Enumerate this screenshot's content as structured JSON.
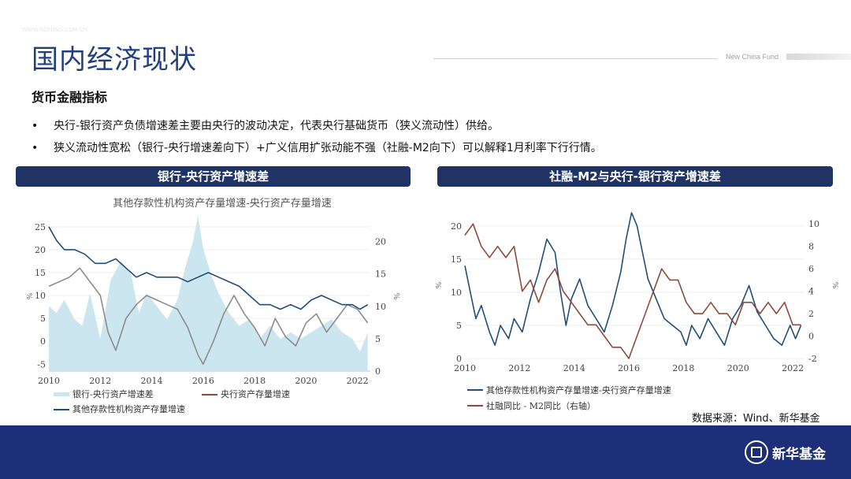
{
  "page": {
    "title": "国内经济现状",
    "brand_top": "New China Fund",
    "section": "货币金融指标",
    "bullets": [
      "央行-银行资产负债增速差主要由央行的波动决定，代表央行基础货币（狭义流动性）供给。",
      "狭义流动性宽松（银行-央行增速差向下）+广义信用扩张动能不强（社融-M2向下）可以解释1月利率下行行情。"
    ],
    "bullet_mark": "•",
    "source": "数据来源：Wind、新华基金",
    "footer": {
      "brand": "新华基金 New China Fund",
      "url": "WWW.NCFUND.COM.CN",
      "logo_text": "新华基金"
    },
    "colors": {
      "navy": "#1f3464",
      "footer": "#1c2f78",
      "blue": "#1f4e79",
      "brown": "#8b4a3c",
      "light": "#cce6ef",
      "gray": "#8c8c8c"
    }
  },
  "chart_data": [
    {
      "type": "area",
      "header": "银行-央行资产增速差",
      "title": "其他存款性机构资产存量增速-央行资产存量增速",
      "ylabel_left": "%",
      "ylabel_right": "%",
      "xlim": [
        2010,
        2022.5
      ],
      "ylim_left": [
        -6.5,
        26
      ],
      "ylim_right": [
        0,
        23
      ],
      "xticks": [
        "2010",
        "2012",
        "2014",
        "2016",
        "2018",
        "2020",
        "2022"
      ],
      "yticks_left": [
        "-5",
        "0",
        "5",
        "10",
        "15",
        "20",
        "25"
      ],
      "yticks_right": [
        "0",
        "5",
        "10",
        "15",
        "20"
      ],
      "series": [
        {
          "name": "银行-央行资产增速差",
          "style": "area",
          "axis": "right",
          "x": [
            2010,
            2010.3,
            2010.6,
            2011,
            2011.3,
            2011.6,
            2012,
            2012.4,
            2012.8,
            2013.2,
            2013.5,
            2013.8,
            2014.2,
            2014.6,
            2015,
            2015.3,
            2015.6,
            2015.8,
            2016,
            2016.3,
            2016.6,
            2017,
            2017.4,
            2017.8,
            2018.2,
            2018.6,
            2019,
            2019.4,
            2019.8,
            2020.2,
            2020.6,
            2021,
            2021.4,
            2021.8,
            2022.1,
            2022.4
          ],
          "y": [
            10,
            9,
            11,
            8,
            7,
            12,
            5,
            14,
            17,
            15,
            9,
            12,
            10,
            8,
            11,
            16,
            20,
            24,
            19,
            15,
            12,
            9,
            7,
            8,
            5,
            7,
            5,
            6,
            5,
            6,
            7,
            8,
            6,
            5,
            3,
            6
          ]
        },
        {
          "name": "央行资产存量增速",
          "style": "line",
          "axis": "left",
          "x": [
            2010,
            2010.4,
            2010.8,
            2011.2,
            2011.6,
            2012,
            2012.3,
            2012.6,
            2013,
            2013.4,
            2013.8,
            2014.2,
            2014.6,
            2015,
            2015.4,
            2015.8,
            2016,
            2016.4,
            2016.8,
            2017.2,
            2017.6,
            2018,
            2018.4,
            2018.8,
            2019.2,
            2019.6,
            2020,
            2020.4,
            2020.8,
            2021.2,
            2021.6,
            2022,
            2022.4
          ],
          "y": [
            12,
            13,
            14,
            16,
            13,
            10,
            2,
            -2,
            5,
            8,
            10,
            9,
            8,
            7,
            3,
            -3,
            -5,
            0,
            6,
            10,
            6,
            3,
            -1,
            5,
            1,
            -1,
            4,
            6,
            2,
            5,
            8,
            7,
            4
          ]
        },
        {
          "name": "其他存款性机构资产存量增速",
          "style": "line",
          "axis": "left",
          "x": [
            2010,
            2010.3,
            2010.6,
            2011,
            2011.4,
            2011.8,
            2012.2,
            2012.6,
            2013,
            2013.4,
            2013.8,
            2014.2,
            2014.6,
            2015,
            2015.4,
            2015.8,
            2016.2,
            2016.6,
            2017,
            2017.4,
            2017.8,
            2018.2,
            2018.6,
            2019,
            2019.4,
            2019.8,
            2020.2,
            2020.6,
            2021,
            2021.4,
            2021.8,
            2022.1,
            2022.4
          ],
          "y": [
            25,
            22,
            20,
            20,
            19,
            17,
            17,
            18,
            16,
            14,
            15,
            14,
            14,
            14,
            13,
            14,
            15,
            14,
            13,
            12,
            10,
            8,
            8,
            7,
            8,
            7,
            9,
            10,
            9,
            8,
            8,
            7,
            8
          ]
        }
      ]
    },
    {
      "type": "line",
      "header": "社融-M2与央行-银行资产增速差",
      "title": "",
      "ylabel_left": "%",
      "ylabel_right": "%",
      "xlim": [
        2010,
        2022.4
      ],
      "ylim_left": [
        0,
        22
      ],
      "ylim_right": [
        -2,
        11
      ],
      "xticks": [
        "2010",
        "2012",
        "2014",
        "2016",
        "2018",
        "2020",
        "2022"
      ],
      "yticks_left": [
        "0",
        "5",
        "10",
        "15",
        "20"
      ],
      "yticks_right": [
        "-2",
        "0",
        "2",
        "4",
        "6",
        "8",
        "10"
      ],
      "series": [
        {
          "name": "其他存款性机构资产存量增速-央行资产存量增速",
          "axis": "left",
          "x": [
            2010,
            2010.2,
            2010.4,
            2010.6,
            2010.9,
            2011.1,
            2011.3,
            2011.6,
            2011.8,
            2012.1,
            2012.4,
            2012.7,
            2013,
            2013.3,
            2013.5,
            2013.7,
            2013.9,
            2014.2,
            2014.5,
            2014.8,
            2015.1,
            2015.4,
            2015.7,
            2015.9,
            2016.1,
            2016.3,
            2016.5,
            2016.7,
            2017,
            2017.3,
            2017.6,
            2017.9,
            2018.1,
            2018.3,
            2018.6,
            2018.9,
            2019.2,
            2019.5,
            2019.8,
            2020.1,
            2020.4,
            2020.7,
            2021,
            2021.3,
            2021.6,
            2021.9,
            2022.1,
            2022.3
          ],
          "y": [
            14,
            10,
            6,
            8,
            4,
            2,
            5,
            3,
            6,
            4,
            9,
            13,
            18,
            16,
            10,
            5,
            9,
            12,
            8,
            6,
            4,
            8,
            13,
            18,
            22,
            20,
            16,
            12,
            9,
            6,
            5,
            4,
            2,
            5,
            3,
            6,
            4,
            2,
            6,
            8,
            11,
            7,
            5,
            3,
            2,
            5,
            3,
            5
          ]
        },
        {
          "name": "社融同比 - M2同比（右轴）",
          "axis": "right",
          "x": [
            2010,
            2010.3,
            2010.6,
            2010.9,
            2011.2,
            2011.5,
            2011.8,
            2012.1,
            2012.4,
            2012.7,
            2013,
            2013.3,
            2013.6,
            2013.9,
            2014.2,
            2014.5,
            2014.8,
            2015.1,
            2015.4,
            2015.7,
            2016,
            2016.3,
            2016.6,
            2016.9,
            2017.2,
            2017.5,
            2017.8,
            2018.1,
            2018.4,
            2018.7,
            2019,
            2019.3,
            2019.6,
            2019.9,
            2020.2,
            2020.5,
            2020.8,
            2021.1,
            2021.4,
            2021.7,
            2022,
            2022.3
          ],
          "y": [
            9,
            10,
            8,
            7,
            8,
            7,
            8,
            4,
            5,
            3,
            5,
            6,
            4,
            3,
            2,
            1,
            1,
            0,
            -1,
            -1,
            -2,
            0,
            2,
            4,
            6,
            5,
            5,
            3,
            2,
            2,
            3,
            2,
            2,
            1,
            3,
            3,
            2,
            3,
            2,
            3,
            1,
            1
          ]
        }
      ]
    }
  ],
  "legends": {
    "left": [
      "银行-央行资产增速差",
      "央行资产存量增速",
      "其他存款性机构资产存量增速"
    ],
    "right": [
      "其他存款性机构资产存量增速-央行资产存量增速",
      "社融同比 - M2同比（右轴）"
    ]
  }
}
